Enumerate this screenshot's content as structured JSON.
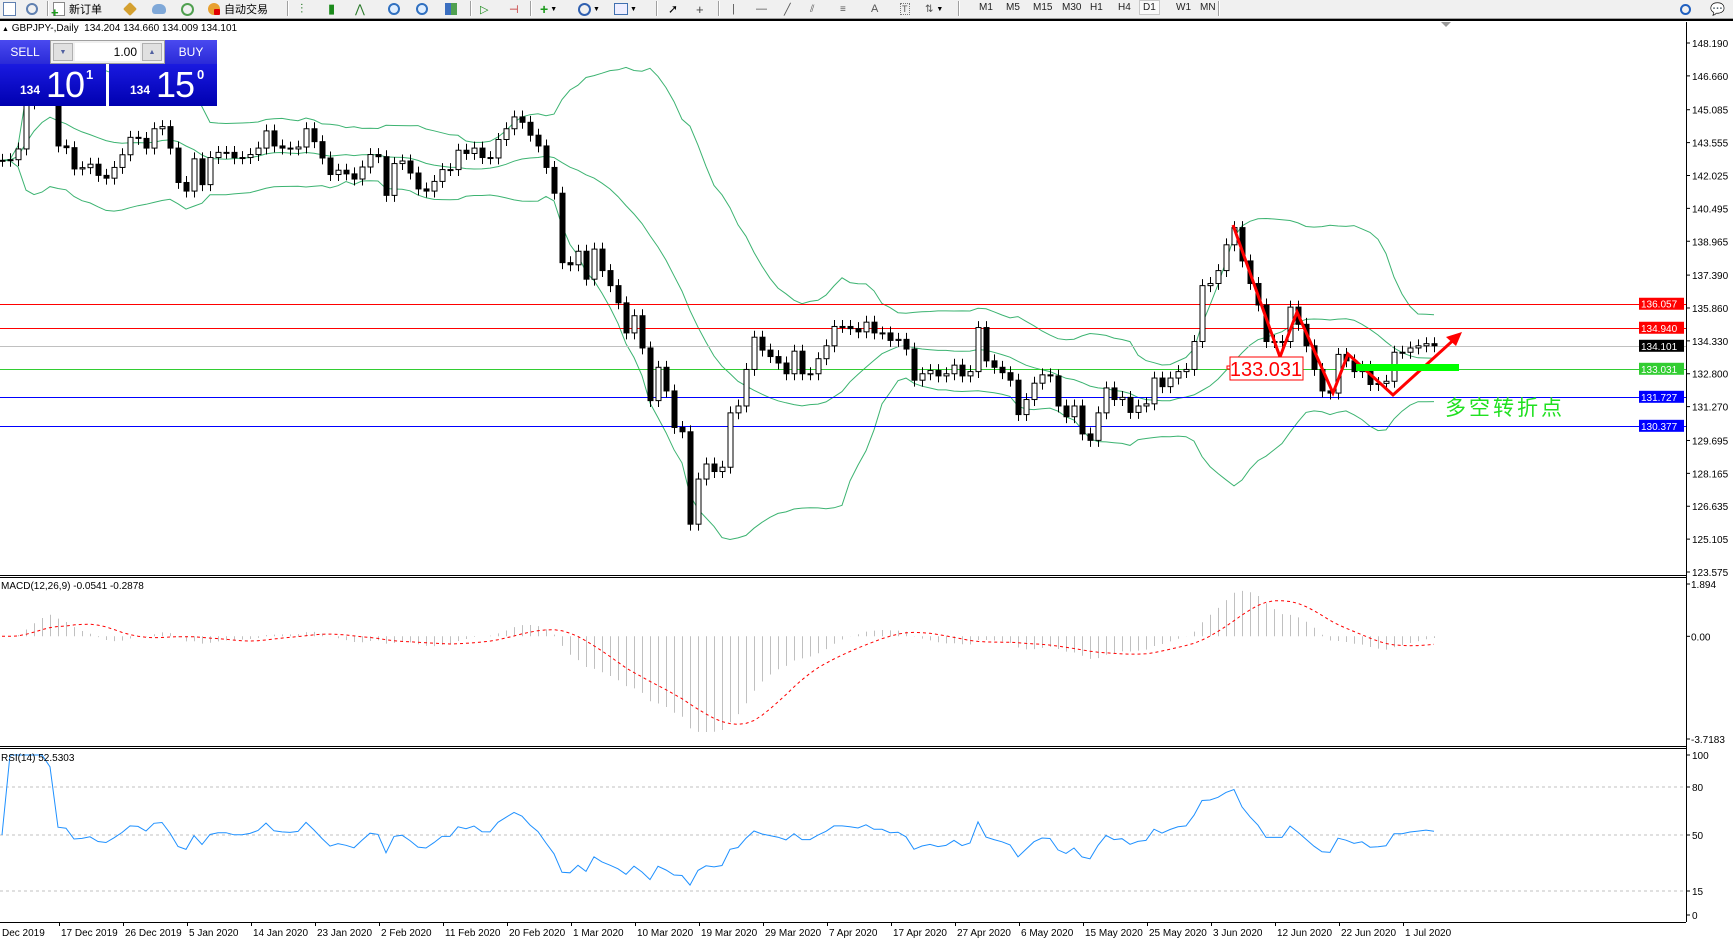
{
  "toolbar": {
    "new_order_label": "新订单",
    "auto_trade_label": "自动交易",
    "timeframes": [
      "M1",
      "M5",
      "M15",
      "M30",
      "H1",
      "H4",
      "D1",
      "W1",
      "MN"
    ],
    "active_timeframe": "D1",
    "icons": [
      "new-chart-icon",
      "zoom-icon",
      "new-order-icon",
      "gold-icon",
      "cloud-icon",
      "signal-icon",
      "auto-trade-icon",
      "bar-chart-icon",
      "candle-chart-icon",
      "line-chart-icon",
      "zoom-in-icon",
      "zoom-out-icon",
      "tile-icon",
      "autoscroll-icon",
      "chart-shift-icon",
      "indicators-icon",
      "periods-icon",
      "templates-icon",
      "cursor-icon",
      "crosshair-icon",
      "vertical-line-icon",
      "horizontal-line-icon",
      "trendline-icon",
      "channel-icon",
      "fibonacci-icon",
      "text-icon",
      "text-label-icon",
      "arrows-icon",
      "search-icon",
      "chat-icon"
    ]
  },
  "chart_header": {
    "symbol": "GBPJPY-,Daily",
    "ohlc": "134.204 134.660 134.009 134.101"
  },
  "trade_panel": {
    "sell_label": "SELL",
    "buy_label": "BUY",
    "lot": "1.00",
    "sell_price": {
      "prefix": "134",
      "big": "10",
      "sup": "1"
    },
    "buy_price": {
      "prefix": "134",
      "big": "15",
      "sup": "0"
    },
    "color": "#2020d8"
  },
  "chart_data": {
    "type": "candlestick",
    "symbol": "GBPJPY",
    "timeframe": "Daily",
    "ylim": [
      123.575,
      148.19
    ],
    "y_ticks": [
      "148.190",
      "146.660",
      "145.085",
      "143.555",
      "142.025",
      "140.495",
      "138.965",
      "137.390",
      "135.860",
      "134.330",
      "132.800",
      "131.270",
      "129.695",
      "128.165",
      "126.635",
      "125.105",
      "123.575"
    ],
    "x_tick_labels": [
      "Dec 2019",
      "17 Dec 2019",
      "26 Dec 2019",
      "5 Jan 2020",
      "14 Jan 2020",
      "23 Jan 2020",
      "2 Feb 2020",
      "11 Feb 2020",
      "20 Feb 2020",
      "1 Mar 2020",
      "10 Mar 2020",
      "19 Mar 2020",
      "29 Mar 2020",
      "7 Apr 2020",
      "17 Apr 2020",
      "27 Apr 2020",
      "6 May 2020",
      "15 May 2020",
      "25 May 2020",
      "3 Jun 2020",
      "12 Jun 2020",
      "22 Jun 2020",
      "1 Jul 2020"
    ],
    "closes": [
      142.73,
      142.76,
      143.26,
      145.4,
      146.3,
      146.5,
      146.2,
      143.4,
      143.32,
      142.33,
      142.39,
      142.55,
      142.03,
      141.9,
      142.4,
      142.99,
      143.8,
      143.75,
      143.3,
      144.2,
      144.3,
      143.3,
      141.7,
      141.3,
      142.8,
      141.6,
      142.86,
      143.1,
      143.1,
      142.85,
      142.86,
      143.0,
      143.3,
      144.1,
      143.4,
      143.3,
      143.26,
      143.35,
      144.2,
      143.6,
      142.84,
      142.07,
      142.27,
      142.1,
      141.86,
      142.42,
      143.0,
      142.9,
      141.1,
      142.58,
      142.7,
      142.14,
      141.4,
      141.3,
      141.75,
      142.3,
      142.3,
      143.2,
      143.05,
      143.3,
      142.86,
      142.84,
      143.7,
      144.2,
      144.75,
      144.5,
      143.9,
      143.4,
      142.4,
      141.2,
      137.97,
      137.87,
      138.5,
      137.2,
      138.6,
      137.6,
      136.9,
      136.1,
      134.7,
      135.5,
      134.0,
      131.55,
      133.1,
      132.0,
      130.3,
      130.1,
      125.8,
      127.9,
      128.6,
      128.25,
      128.45,
      130.98,
      131.3,
      133.0,
      134.5,
      133.9,
      133.6,
      133.3,
      132.8,
      133.85,
      132.8,
      132.8,
      133.5,
      134.1,
      135.0,
      135.0,
      134.9,
      134.75,
      135.2,
      134.7,
      134.7,
      134.35,
      134.4,
      133.95,
      132.5,
      132.8,
      132.95,
      132.7,
      132.8,
      133.2,
      132.7,
      132.9,
      134.95,
      133.4,
      133.1,
      132.85,
      132.5,
      130.9,
      131.6,
      132.36,
      132.75,
      132.7,
      131.3,
      130.8,
      131.3,
      130.0,
      129.7,
      130.98,
      132.14,
      131.6,
      131.7,
      131.0,
      131.3,
      131.4,
      132.6,
      132.2,
      132.6,
      132.9,
      133.0,
      134.3,
      136.9,
      137.0,
      137.6,
      138.8,
      139.6,
      138.05,
      137.0,
      136.0,
      134.3,
      134.3,
      134.3,
      135.9,
      135.1,
      134.1,
      133.0,
      132.0,
      131.9,
      133.7,
      133.4,
      132.9,
      133.1,
      132.3,
      132.35,
      132.45,
      133.8,
      133.8,
      134.0,
      134.1,
      134.2,
      134.101
    ],
    "indicators": {
      "bollinger": {
        "color": "#3cb371"
      },
      "macd": {
        "label": "MACD(12,26,9) -0.0541 -0.2878",
        "ticks": [
          "1.894",
          "0.00",
          "-3.7183"
        ],
        "ylim": [
          -3.7183,
          1.894
        ],
        "histogram_color": "#c0c0c0",
        "signal_color": "#ff0000"
      },
      "rsi": {
        "label": "RSI(14) 52.5303",
        "ticks": [
          "100",
          "80",
          "50",
          "15",
          "0"
        ],
        "levels": [
          80,
          50,
          15
        ],
        "ylim": [
          0,
          100
        ],
        "color": "#1e90ff"
      }
    },
    "levels": [
      {
        "price": "136.057",
        "color": "#ff0000"
      },
      {
        "price": "134.940",
        "color": "#ff0000"
      },
      {
        "price": "134.101",
        "color": "#c0c0c0",
        "label_bg": "#000000"
      },
      {
        "price": "133.031",
        "color": "#32cd32",
        "label_bg": "#32cd32"
      },
      {
        "price": "131.727",
        "color": "#0000ff"
      },
      {
        "price": "130.377",
        "color": "#0000ff"
      }
    ],
    "annotations": {
      "price_label": "133.031",
      "turning_point_text": "多空转折点",
      "arrow_color": "#ff0000",
      "zone_color": "#00ff00"
    }
  }
}
